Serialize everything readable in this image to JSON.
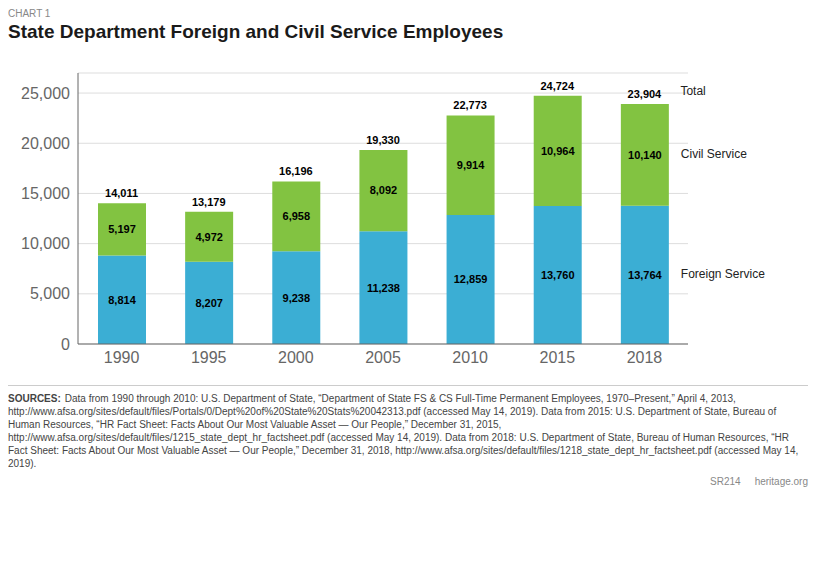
{
  "chart_data": {
    "type": "bar",
    "stacked": true,
    "title": "State Department Foreign and Civil Service Employees",
    "annotations": [
      "CHART 1",
      "SOURCES:",
      "Data from 1990 through 2010: U.S. Department of State, “Department of State FS & CS Full-Time Permanent Employees, 1970–Present,” April 4, 2013, http://www.afsa.org/sites/default/files/Portals/0/Dept%20of%20State%20Stats%20042313.pdf (accessed May 14, 2019). Data from 2015: U.S. Department of State, Bureau of Human Resources, “HR Fact Sheet: Facts About Our Most Valuable Asset — Our People,” December 31, 2015, http://www.afsa.org/sites/default/files/1215_state_dept_hr_factsheet.pdf (accessed May 14, 2019). Data from 2018: U.S. Department of State, Bureau of Human Resources, “HR Fact Sheet: Facts About Our Most Valuable Asset — Our People,” December 31, 2018, http://www.afsa.org/sites/default/files/1218_state_dept_hr_factsheet.pdf (accessed May 14, 2019).",
      "SR214",
      "heritage.org"
    ],
    "categories": [
      "1990",
      "1995",
      "2000",
      "2005",
      "2010",
      "2015",
      "2018"
    ],
    "series": [
      {
        "name": "Foreign Service",
        "color": "#3baed4",
        "values": [
          8814,
          8207,
          9238,
          11238,
          12859,
          13760,
          13764
        ],
        "value_labels": [
          "8,814",
          "8,207",
          "9,238",
          "11,238",
          "12,859",
          "13,760",
          "13,764"
        ]
      },
      {
        "name": "Civil Service",
        "color": "#82c341",
        "values": [
          5197,
          4972,
          6958,
          8092,
          9914,
          10964,
          10140
        ],
        "value_labels": [
          "5,197",
          "4,972",
          "6,958",
          "8,092",
          "9,914",
          "10,964",
          "10,140"
        ]
      }
    ],
    "totals": {
      "name": "Total",
      "values": [
        14011,
        13179,
        16196,
        19330,
        22773,
        24724,
        23904
      ],
      "value_labels": [
        "14,011",
        "13,179",
        "16,196",
        "19,330",
        "22,773",
        "24,724",
        "23,904"
      ]
    },
    "data_labels": true,
    "grid": true,
    "ylim": [
      0,
      27000
    ],
    "yticks": [
      0,
      {
        "value": 5000,
        "label": "5,000"
      },
      {
        "value": 10000,
        "label": "10,000"
      },
      {
        "value": 15000,
        "label": "15,000"
      },
      {
        "value": 20000,
        "label": "20,000"
      },
      {
        "value": 25000,
        "label": "25,000"
      }
    ]
  }
}
